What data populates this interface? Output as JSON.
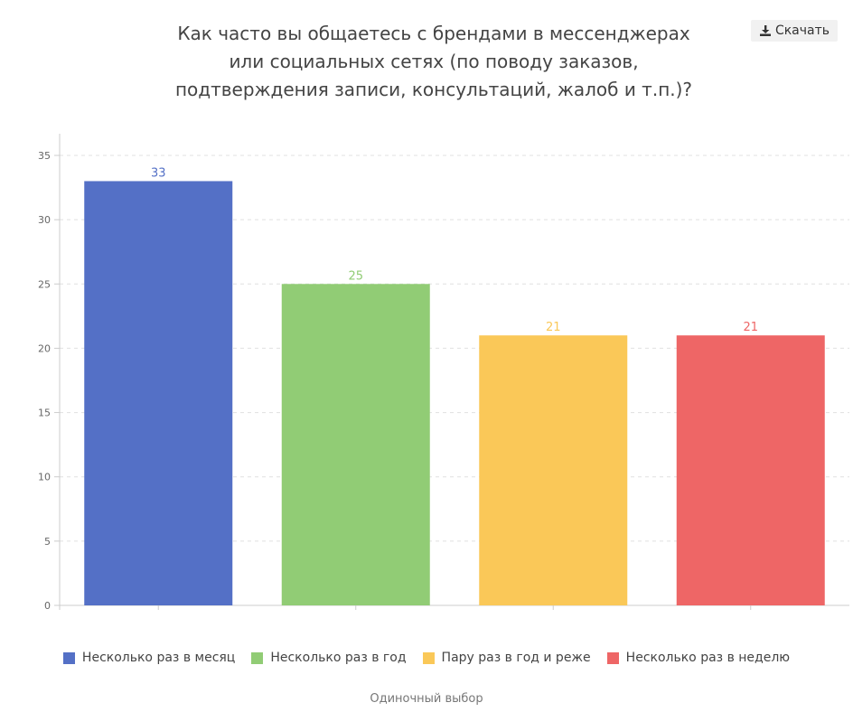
{
  "title": "Как часто вы общаетесь с брендами в мессенджерах или социальных сетях (по поводу заказов, подтверждения записи, консультаций, жалоб и т.п.)?",
  "title_lines": [
    "Как часто вы общаетесь с брендами в мессенджерах",
    "или социальных сетях (по поводу заказов,",
    "подтверждения записи, консультаций, жалоб и т.п.)?"
  ],
  "download_label": "Скачать",
  "download_icon": "download-icon",
  "footer": "Одиночный выбор",
  "chart_data": {
    "type": "bar",
    "categories": [
      "Несколько раз в месяц",
      "Несколько раз в год",
      "Пару раз в год и реже",
      "Несколько раз в неделю"
    ],
    "values": [
      33,
      25,
      21,
      21
    ],
    "colors": [
      "#5470c6",
      "#91cc75",
      "#fac858",
      "#ee6666"
    ],
    "ylim": [
      0,
      35
    ],
    "yticks": [
      0,
      5,
      10,
      15,
      20,
      25,
      30,
      35
    ],
    "grid": true,
    "grid_style": "dashed",
    "legend_position": "bottom",
    "data_labels": true
  }
}
